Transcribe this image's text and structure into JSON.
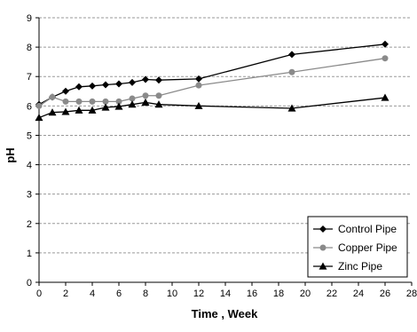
{
  "chart_data": {
    "type": "line",
    "title": "",
    "xlabel": "Time , Week",
    "ylabel": "pH",
    "xlim": [
      0,
      28
    ],
    "ylim": [
      0,
      9
    ],
    "x_ticks": [
      "0",
      "2",
      "4",
      "6",
      "8",
      "10",
      "12",
      "14",
      "16",
      "18",
      "20",
      "22",
      "24",
      "26",
      "28"
    ],
    "y_ticks": [
      "0",
      "1",
      "2",
      "3",
      "4",
      "5",
      "6",
      "7",
      "8",
      "9"
    ],
    "grid": "horizontal-dashed",
    "legend_position": "bottom-right",
    "series": [
      {
        "name": "Control Pipe",
        "color": "#000000",
        "marker": "diamond",
        "x": [
          0,
          1,
          2,
          3,
          4,
          5,
          6,
          7,
          8,
          9,
          12,
          19,
          26
        ],
        "y": [
          6.05,
          6.3,
          6.5,
          6.65,
          6.68,
          6.72,
          6.75,
          6.8,
          6.9,
          6.88,
          6.92,
          7.75,
          8.1
        ]
      },
      {
        "name": "Copper Pipe",
        "color": "#8a8a8a",
        "marker": "circle",
        "x": [
          0,
          1,
          2,
          3,
          4,
          5,
          6,
          7,
          8,
          9,
          12,
          19,
          26
        ],
        "y": [
          6.0,
          6.3,
          6.15,
          6.15,
          6.15,
          6.15,
          6.15,
          6.25,
          6.35,
          6.35,
          6.7,
          7.15,
          7.62
        ]
      },
      {
        "name": "Zinc Pipe",
        "color": "#000000",
        "marker": "triangle",
        "x": [
          0,
          1,
          2,
          3,
          4,
          5,
          6,
          7,
          8,
          9,
          12,
          19,
          26
        ],
        "y": [
          5.6,
          5.78,
          5.8,
          5.85,
          5.85,
          5.95,
          5.98,
          6.05,
          6.12,
          6.05,
          6.0,
          5.92,
          6.28
        ]
      }
    ]
  }
}
